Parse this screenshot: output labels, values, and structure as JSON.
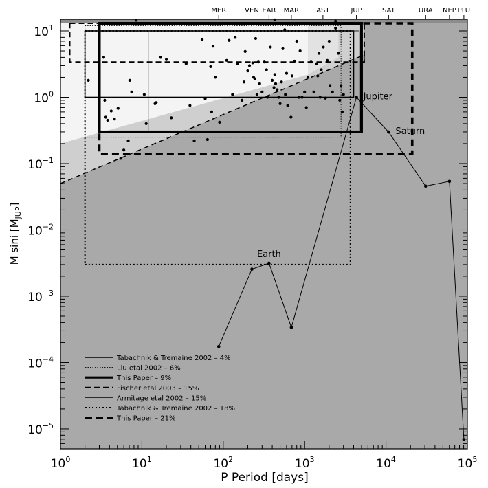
{
  "chart_data": {
    "type": "scatter",
    "xscale": "log",
    "yscale": "log",
    "xlim": [
      1,
      100000
    ],
    "ylim": [
      5e-06,
      15
    ],
    "xlabel": "P Period [days]",
    "ylabel": "M sini [M_JUP]",
    "x_ticks": [
      {
        "value": 1,
        "base": "10",
        "exp": "0"
      },
      {
        "value": 10,
        "base": "10",
        "exp": "1"
      },
      {
        "value": 100,
        "base": "10",
        "exp": "2"
      },
      {
        "value": 1000,
        "base": "10",
        "exp": "3"
      },
      {
        "value": 10000,
        "base": "10",
        "exp": "4"
      },
      {
        "value": 100000,
        "base": "10",
        "exp": "5"
      }
    ],
    "y_ticks": [
      {
        "value": 1e-05,
        "base": "10",
        "exp": "−5"
      },
      {
        "value": 0.0001,
        "base": "10",
        "exp": "−4"
      },
      {
        "value": 0.001,
        "base": "10",
        "exp": "−3"
      },
      {
        "value": 0.01,
        "base": "10",
        "exp": "−2"
      },
      {
        "value": 0.1,
        "base": "10",
        "exp": "−1"
      },
      {
        "value": 1,
        "base": "10",
        "exp": "0"
      },
      {
        "value": 10,
        "base": "10",
        "exp": "1"
      }
    ],
    "top_axis_labels": [
      {
        "label": "MER",
        "period": 88
      },
      {
        "label": "VEN",
        "period": 225
      },
      {
        "label": "EAR",
        "period": 365
      },
      {
        "label": "MAR",
        "period": 687
      },
      {
        "label": "AST",
        "period": 1680
      },
      {
        "label": "JUP",
        "period": 4333
      },
      {
        "label": "SAT",
        "period": 10759
      },
      {
        "label": "URA",
        "period": 30687
      },
      {
        "label": "NEP",
        "period": 60190
      },
      {
        "label": "PLU",
        "period": 90560
      }
    ],
    "solar_system": [
      {
        "name": "",
        "p": 88,
        "m": 0.000174
      },
      {
        "name": "",
        "p": 225,
        "m": 0.00256
      },
      {
        "name": "Earth",
        "p": 365,
        "m": 0.00315
      },
      {
        "name": "",
        "p": 687,
        "m": 0.000338
      },
      {
        "name": "Jupiter",
        "p": 4333,
        "m": 1.0
      },
      {
        "name": "Saturn",
        "p": 10759,
        "m": 0.299
      },
      {
        "name": "",
        "p": 30687,
        "m": 0.0457
      },
      {
        "name": "",
        "p": 60190,
        "m": 0.054
      },
      {
        "name": "",
        "p": 90560,
        "m": 6.9e-06
      }
    ],
    "exoplanets": [
      [
        8.5,
        14.5
      ],
      [
        430,
        14.7
      ],
      [
        2400,
        14.0
      ],
      [
        2.2,
        1.8
      ],
      [
        3.4,
        4.0
      ],
      [
        3.5,
        0.9
      ],
      [
        3.6,
        0.5
      ],
      [
        3.8,
        0.45
      ],
      [
        4.2,
        0.62
      ],
      [
        3.9,
        0.3
      ],
      [
        4.6,
        0.47
      ],
      [
        5.1,
        0.68
      ],
      [
        5.5,
        0.12
      ],
      [
        6.0,
        0.16
      ],
      [
        6.8,
        0.22
      ],
      [
        7.1,
        1.8
      ],
      [
        7.5,
        1.2
      ],
      [
        10.7,
        1.1
      ],
      [
        11.3,
        0.4
      ],
      [
        14.5,
        0.8
      ],
      [
        15.0,
        0.83
      ],
      [
        17,
        4.0
      ],
      [
        20,
        3.7
      ],
      [
        23,
        0.49
      ],
      [
        35,
        3.2
      ],
      [
        39,
        0.75
      ],
      [
        44,
        0.22
      ],
      [
        55,
        7.4
      ],
      [
        60,
        0.95
      ],
      [
        64,
        0.23
      ],
      [
        70,
        2.9
      ],
      [
        72,
        0.6
      ],
      [
        75,
        5.9
      ],
      [
        80,
        2.0
      ],
      [
        90,
        0.42
      ],
      [
        110,
        3.6
      ],
      [
        118,
        7.2
      ],
      [
        130,
        1.1
      ],
      [
        140,
        8.0
      ],
      [
        150,
        3.2
      ],
      [
        170,
        0.9
      ],
      [
        180,
        1.7
      ],
      [
        186,
        4.9
      ],
      [
        200,
        2.5
      ],
      [
        210,
        3.0
      ],
      [
        230,
        3.3
      ],
      [
        236,
        2.0
      ],
      [
        245,
        1.9
      ],
      [
        250,
        7.7
      ],
      [
        260,
        1.1
      ],
      [
        270,
        3.4
      ],
      [
        280,
        1.6
      ],
      [
        300,
        1.2
      ],
      [
        320,
        3.4
      ],
      [
        340,
        2.6
      ],
      [
        350,
        1.0
      ],
      [
        380,
        5.7
      ],
      [
        400,
        1.8
      ],
      [
        420,
        1.4
      ],
      [
        430,
        2.2
      ],
      [
        440,
        1.6
      ],
      [
        460,
        1.3
      ],
      [
        480,
        1.0
      ],
      [
        500,
        0.8
      ],
      [
        520,
        1.7
      ],
      [
        540,
        5.4
      ],
      [
        570,
        10.4
      ],
      [
        580,
        1.1
      ],
      [
        600,
        2.3
      ],
      [
        620,
        0.75
      ],
      [
        680,
        0.5
      ],
      [
        700,
        2.1
      ],
      [
        750,
        3.5
      ],
      [
        800,
        7.0
      ],
      [
        850,
        1.0
      ],
      [
        880,
        5.0
      ],
      [
        930,
        1.0
      ],
      [
        1000,
        1.2
      ],
      [
        1050,
        0.7
      ],
      [
        1100,
        2.0
      ],
      [
        1200,
        3.4
      ],
      [
        1300,
        1.2
      ],
      [
        1400,
        3.2
      ],
      [
        1450,
        2.1
      ],
      [
        1500,
        4.6
      ],
      [
        1550,
        1.0
      ],
      [
        1600,
        2.6
      ],
      [
        1700,
        5.7
      ],
      [
        1800,
        0.97
      ],
      [
        1900,
        3.6
      ],
      [
        2000,
        7.0
      ],
      [
        2050,
        1.5
      ],
      [
        2200,
        1.2
      ],
      [
        2400,
        11.0
      ],
      [
        2600,
        4.6
      ],
      [
        2700,
        0.9
      ],
      [
        2800,
        1.5
      ],
      [
        2900,
        0.6
      ],
      [
        3000,
        1.1
      ]
    ],
    "legend_position": "bottom-left",
    "legend": [
      {
        "label": "Tabachnik & Tremaine 2002 – 4%",
        "style": "solid-medium"
      },
      {
        "label": "Liu etal 2002 – 6%",
        "style": "dotted-thin"
      },
      {
        "label": "This Paper – 9%",
        "style": "solid-thick"
      },
      {
        "label": "Fischer etal 2003 – 15%",
        "style": "dashed-medium"
      },
      {
        "label": "Armitage etal 2002 – 15%",
        "style": "solid-thin"
      },
      {
        "label": "Tabachnik & Tremaine 2002 – 18%",
        "style": "dotted-medium"
      },
      {
        "label": "This Paper – 21%",
        "style": "dashed-thick"
      }
    ],
    "regions": [
      {
        "name": "Tabachnik & Tremaine 2002 – 4%",
        "p": [
          2,
          4000
        ],
        "m": [
          1,
          10
        ],
        "style": "solid-medium"
      },
      {
        "name": "Liu etal 2002 – 6%",
        "p": [
          2,
          2800
        ],
        "m": [
          0.25,
          12
        ],
        "style": "dotted-thin"
      },
      {
        "name": "This Paper – 9%",
        "p": [
          3,
          5000
        ],
        "m": [
          0.3,
          13
        ],
        "style": "solid-thick"
      },
      {
        "name": "Fischer etal 2003 – 15%",
        "p": [
          1.3,
          5400
        ],
        "m": [
          3.4,
          13
        ],
        "style": "dashed-medium"
      },
      {
        "name": "Armitage etal 2002 – 15%",
        "p": [
          12,
          4700
        ],
        "m": [
          0.3,
          10
        ],
        "style": "solid-thin"
      },
      {
        "name": "Tabachnik & Tremaine 2002 – 18%",
        "p": [
          2,
          3650
        ],
        "m": [
          0.003,
          10
        ],
        "style": "dotted-medium"
      },
      {
        "name": "This Paper – 21%",
        "p": [
          3,
          21000
        ],
        "m": [
          0.14,
          13
        ],
        "style": "dashed-thick"
      }
    ],
    "colors": {
      "background_gray": "#a9a9a9",
      "top_band": "#8c8c8c",
      "light_region": "#f4f4f4",
      "mid_region": "#cfcfcf"
    }
  }
}
